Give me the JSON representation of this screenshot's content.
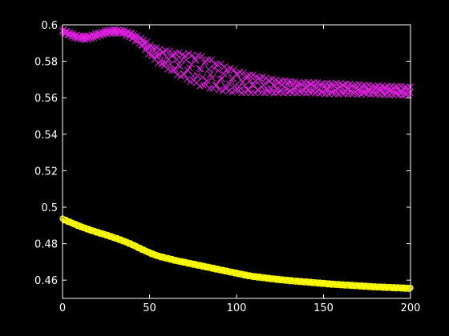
{
  "chart_data": {
    "type": "scatter",
    "xlim": [
      0,
      200
    ],
    "ylim": [
      0.45,
      0.6
    ],
    "xticks": [
      0,
      50,
      100,
      150,
      200
    ],
    "xtick_labels": [
      "0",
      "50",
      "100",
      "150",
      "200"
    ],
    "yticks": [
      0.46,
      0.48,
      0.5,
      0.52,
      0.54,
      0.56,
      0.58,
      0.6
    ],
    "ytick_labels": [
      "0.46",
      "0.48",
      "0.5",
      "0.52",
      "0.54",
      "0.56",
      "0.58",
      "0.6"
    ],
    "grid": false,
    "background": "#000000",
    "axis_color": "#ffffff",
    "series": [
      {
        "marker": "x",
        "color": "#e020e0",
        "x": [
          0,
          5,
          10,
          15,
          20,
          25,
          30,
          35,
          40,
          45,
          50,
          55,
          60,
          65,
          70,
          75,
          80,
          85,
          90,
          95,
          100,
          105,
          110,
          115,
          120,
          125,
          130,
          135,
          140,
          145,
          150,
          155,
          160,
          165,
          170,
          175,
          180,
          185,
          190,
          195,
          200
        ],
        "y": [
          0.5965,
          0.5945,
          0.593,
          0.593,
          0.5945,
          0.596,
          0.5965,
          0.596,
          0.594,
          0.591,
          0.5865,
          0.583,
          0.581,
          0.579,
          0.5775,
          0.576,
          0.5745,
          0.573,
          0.5715,
          0.57,
          0.569,
          0.568,
          0.5675,
          0.567,
          0.5665,
          0.566,
          0.566,
          0.5655,
          0.5655,
          0.5655,
          0.565,
          0.565,
          0.565,
          0.5648,
          0.5645,
          0.5645,
          0.5642,
          0.564,
          0.564,
          0.5638,
          0.5635
        ],
        "band": [
          0.001,
          0.001,
          0.001,
          0.001,
          0.001,
          0.001,
          0.001,
          0.001,
          0.0015,
          0.002,
          0.003,
          0.004,
          0.005,
          0.006,
          0.007,
          0.008,
          0.0085,
          0.008,
          0.0075,
          0.007,
          0.006,
          0.0055,
          0.005,
          0.0045,
          0.004,
          0.0035,
          0.0035,
          0.003,
          0.003,
          0.003,
          0.003,
          0.003,
          0.003,
          0.0028,
          0.0028,
          0.0025,
          0.0025,
          0.0025,
          0.0025,
          0.0025,
          0.0025
        ]
      },
      {
        "marker": "o",
        "color": "#ffff00",
        "x": [
          0,
          5,
          10,
          15,
          20,
          25,
          30,
          35,
          40,
          45,
          50,
          55,
          60,
          65,
          70,
          75,
          80,
          85,
          90,
          95,
          100,
          105,
          110,
          115,
          120,
          125,
          130,
          135,
          140,
          145,
          150,
          155,
          160,
          165,
          170,
          175,
          180,
          185,
          190,
          195,
          200
        ],
        "y": [
          0.4935,
          0.4915,
          0.4895,
          0.4878,
          0.4862,
          0.4848,
          0.4832,
          0.4815,
          0.4795,
          0.4772,
          0.475,
          0.4732,
          0.472,
          0.4708,
          0.4698,
          0.4688,
          0.4678,
          0.4668,
          0.4658,
          0.4648,
          0.4638,
          0.4628,
          0.462,
          0.4614,
          0.4608,
          0.4603,
          0.4598,
          0.4594,
          0.459,
          0.4586,
          0.4582,
          0.4578,
          0.4575,
          0.4572,
          0.4569,
          0.4566,
          0.4563,
          0.4561,
          0.4559,
          0.4557,
          0.4555
        ],
        "band": [
          0.0004,
          0.0004,
          0.0004,
          0.0004,
          0.0004,
          0.0004,
          0.0004,
          0.0004,
          0.0004,
          0.0004,
          0.0004,
          0.0004,
          0.0004,
          0.0004,
          0.0004,
          0.0004,
          0.0004,
          0.0004,
          0.0004,
          0.0004,
          0.0004,
          0.0004,
          0.0004,
          0.0004,
          0.0004,
          0.0004,
          0.0004,
          0.0004,
          0.0004,
          0.0004,
          0.0004,
          0.0004,
          0.0004,
          0.0004,
          0.0004,
          0.0004,
          0.0004,
          0.0004,
          0.0004,
          0.0004,
          0.0004
        ]
      }
    ]
  }
}
